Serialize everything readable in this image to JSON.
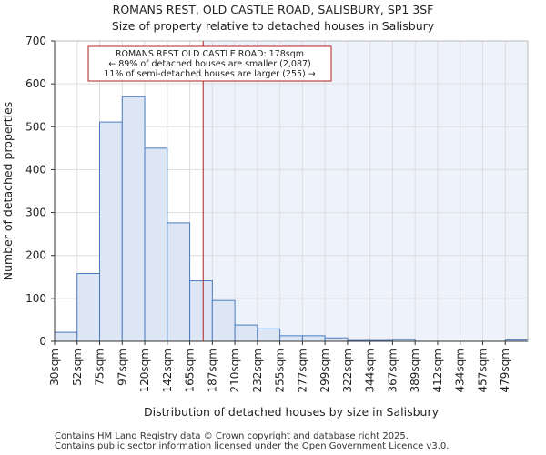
{
  "title_line1": "ROMANS REST, OLD CASTLE ROAD, SALISBURY, SP1 3SF",
  "title_line2": "Size of property relative to detached houses in Salisbury",
  "footer_line1": "Contains HM Land Registry data © Crown copyright and database right 2025.",
  "footer_line2": "Contains public sector information licensed under the Open Government Licence v3.0.",
  "chart_data": {
    "type": "bar",
    "title": "Size of property relative to detached houses in Salisbury",
    "xlabel": "Distribution of detached houses by size in Salisbury",
    "ylabel": "Number of detached properties",
    "ylim": [
      0,
      700
    ],
    "yticks": [
      0,
      100,
      200,
      300,
      400,
      500,
      600,
      700
    ],
    "categories": [
      "30sqm",
      "52sqm",
      "75sqm",
      "97sqm",
      "120sqm",
      "142sqm",
      "165sqm",
      "187sqm",
      "210sqm",
      "232sqm",
      "255sqm",
      "277sqm",
      "299sqm",
      "322sqm",
      "344sqm",
      "367sqm",
      "389sqm",
      "412sqm",
      "434sqm",
      "457sqm",
      "479sqm"
    ],
    "values": [
      21,
      158,
      511,
      570,
      450,
      276,
      141,
      95,
      38,
      29,
      13,
      13,
      8,
      2,
      2,
      4,
      0,
      0,
      0,
      0,
      3
    ],
    "property_marker": {
      "size_sqm": 178,
      "label_line1": "ROMANS REST OLD CASTLE ROAD: 178sqm",
      "label_line2": "← 89% of detached houses are smaller (2,087)",
      "label_line3": "11% of semi-detached houses are larger (255) →"
    },
    "colors": {
      "bar_fill": "#dce6f5",
      "bar_stroke": "#4a7cc0",
      "highlight_bg": "#eef2fa",
      "marker": "#b22222",
      "grid": "#dddddd"
    }
  }
}
